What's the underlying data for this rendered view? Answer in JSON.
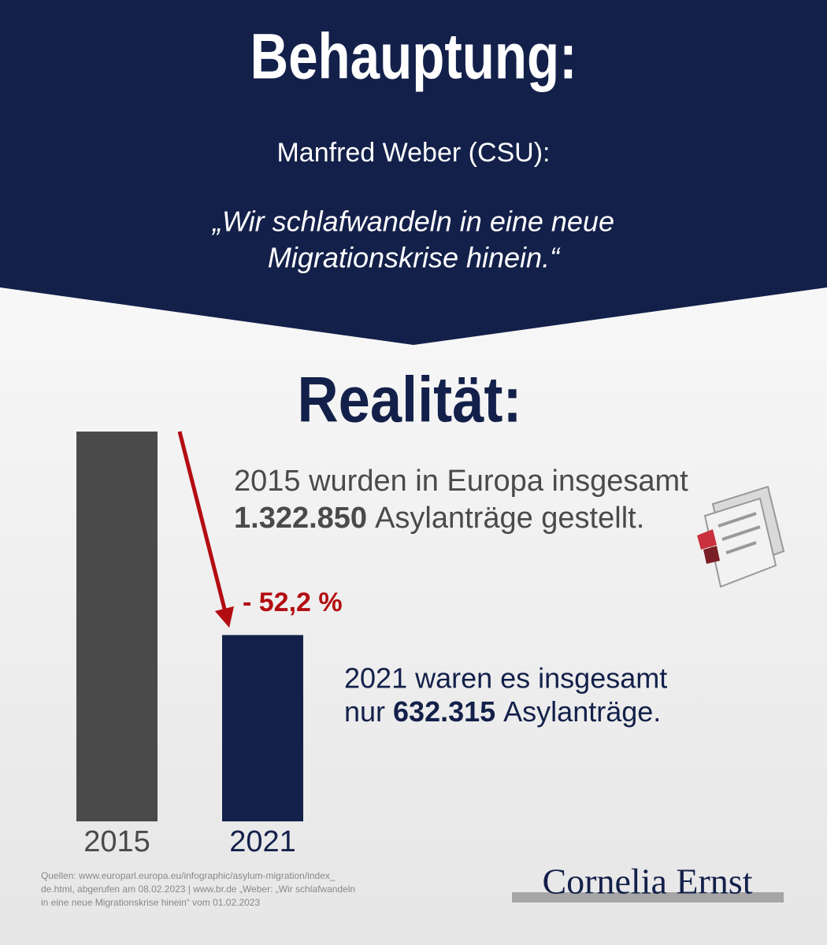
{
  "header": {
    "title": "Behauptung:",
    "speaker": "Manfred Weber (CSU):",
    "quote_line1": "„Wir schlafwandeln in eine neue",
    "quote_line2": "Migrationskrise hinein.“"
  },
  "reality_title": "Realität:",
  "chart_data": {
    "type": "bar",
    "categories": [
      "2015",
      "2021"
    ],
    "values": [
      1322850,
      632315
    ],
    "value_labels": [
      "1.322.850",
      "632.315"
    ],
    "colors": [
      "#4a4a4a",
      "#13204a"
    ],
    "change_label": "- 52,2 %",
    "note_2015": {
      "line1": "2015 wurden in Europa insgesamt",
      "line2_rest": "Asylanträge gestellt."
    },
    "note_2021": {
      "line1": "2021 waren es insgesamt",
      "line2_start": "nur",
      "line2_rest": "Asylanträge."
    }
  },
  "sources": [
    "Quellen: www.europarl.europa.eu/infographic/asylum-migration/index_",
    "de.html, abgerufen am 08.02.2023 | www.br.de „Weber: „Wir schlafwandeln",
    "in eine neue Migrationskrise hinein“ vom 01.02.2023"
  ],
  "logo": "Cornelia Ernst"
}
